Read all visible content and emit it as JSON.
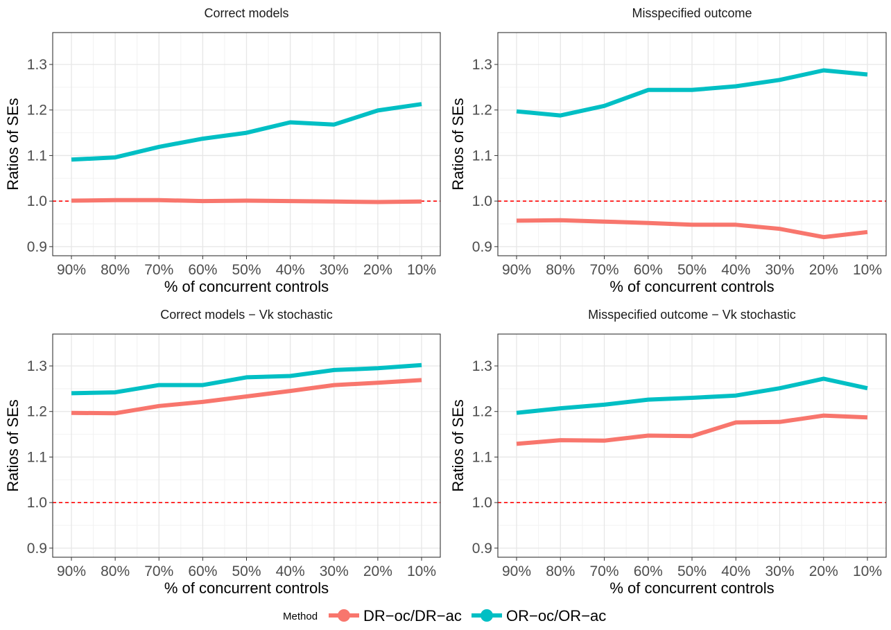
{
  "chart_data": {
    "type": "line",
    "layout": "2x2 facet grid",
    "categories": [
      "90%",
      "80%",
      "70%",
      "60%",
      "50%",
      "40%",
      "30%",
      "20%",
      "10%"
    ],
    "xlabel": "% of concurrent controls",
    "ylabel": "Ratios of SEs",
    "ylim": [
      0.88,
      1.37
    ],
    "yticks": [
      0.9,
      1.0,
      1.1,
      1.2,
      1.3
    ],
    "yticklabels": [
      "0.9",
      "1.0",
      "1.1",
      "1.2",
      "1.3"
    ],
    "reference_line": {
      "y": 1.0,
      "style": "dashed",
      "color": "#ff0000"
    },
    "legend": {
      "title": "Method",
      "position": "bottom",
      "entries": [
        {
          "name": "DR−oc/DR−ac",
          "color": "#f8766d"
        },
        {
          "name": "OR−oc/OR−ac",
          "color": "#00bfc4"
        }
      ]
    },
    "panels": [
      {
        "title": "Correct models",
        "series": [
          {
            "name": "DR−oc/DR−ac",
            "values": [
              1.001,
              1.002,
              1.002,
              1.0,
              1.001,
              1.0,
              0.999,
              0.998,
              0.999
            ]
          },
          {
            "name": "OR−oc/OR−ac",
            "values": [
              1.091,
              1.096,
              1.119,
              1.137,
              1.15,
              1.173,
              1.168,
              1.199,
              1.213
            ]
          }
        ]
      },
      {
        "title": "Misspecified outcome",
        "series": [
          {
            "name": "DR−oc/DR−ac",
            "values": [
              0.957,
              0.958,
              0.955,
              0.952,
              0.948,
              0.948,
              0.939,
              0.921,
              0.932
            ]
          },
          {
            "name": "OR−oc/OR−ac",
            "values": [
              1.197,
              1.188,
              1.209,
              1.244,
              1.244,
              1.252,
              1.266,
              1.287,
              1.278
            ]
          }
        ]
      },
      {
        "title": "Correct models − Vk stochastic",
        "series": [
          {
            "name": "DR−oc/DR−ac",
            "values": [
              1.197,
              1.196,
              1.212,
              1.221,
              1.233,
              1.245,
              1.258,
              1.263,
              1.269
            ]
          },
          {
            "name": "OR−oc/OR−ac",
            "values": [
              1.24,
              1.242,
              1.258,
              1.258,
              1.275,
              1.278,
              1.291,
              1.295,
              1.302
            ]
          }
        ]
      },
      {
        "title": "Misspecified outcome − Vk stochastic",
        "series": [
          {
            "name": "DR−oc/DR−ac",
            "values": [
              1.129,
              1.137,
              1.136,
              1.147,
              1.146,
              1.176,
              1.177,
              1.191,
              1.187
            ]
          },
          {
            "name": "OR−oc/OR−ac",
            "values": [
              1.197,
              1.207,
              1.215,
              1.226,
              1.23,
              1.235,
              1.251,
              1.272,
              1.251
            ]
          }
        ]
      }
    ]
  }
}
